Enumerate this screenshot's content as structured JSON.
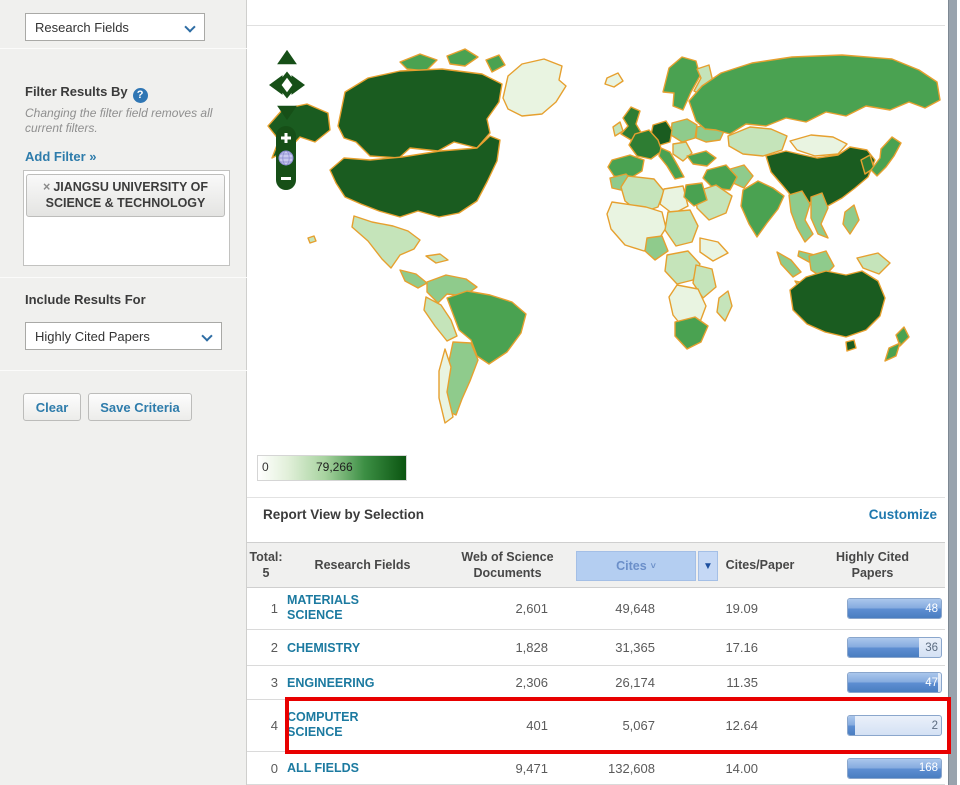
{
  "sidebar": {
    "field_selector_value": "Research Fields",
    "filter": {
      "title": "Filter Results By",
      "help": "?",
      "note": "Changing the filter field removes all current filters.",
      "add_filter": "Add Filter »",
      "chip_remove": "×",
      "chip_label": "JIANGSU UNIVERSITY OF SCIENCE & TECHNOLOGY"
    },
    "include": {
      "title": "Include Results For",
      "selector_value": "Highly Cited Papers"
    },
    "clear_label": "Clear",
    "save_label": "Save Criteria"
  },
  "map": {
    "legend_min": "0",
    "legend_max": "79,266",
    "zoom_in": "+",
    "zoom_out": "−",
    "color_scale": [
      "#e9f4e1",
      "#c5e4ba",
      "#8fcb8c",
      "#4aa251",
      "#2e7d33",
      "#1a5c20"
    ],
    "border_color": "#e6a02f"
  },
  "report": {
    "title": "Report View by Selection",
    "customize": "Customize",
    "columns": {
      "total": "Total:\n5",
      "field": "Research Fields",
      "docs": "Web of Science\nDocuments",
      "cites": "Cites",
      "cites_caret": "˅",
      "dropdown_caret": "▼",
      "cpp": "Cites/Paper",
      "hcp": "Highly Cited\nPapers"
    }
  },
  "table": {
    "rows": [
      {
        "rank": "1",
        "field": "MATERIALS SCIENCE",
        "docs": "2,601",
        "cites": "49,648",
        "cpp": "19.09",
        "hcp": "48",
        "hcp_fill": 100
      },
      {
        "rank": "2",
        "field": "CHEMISTRY",
        "docs": "1,828",
        "cites": "31,365",
        "cpp": "17.16",
        "hcp": "36",
        "hcp_fill": 76
      },
      {
        "rank": "3",
        "field": "ENGINEERING",
        "docs": "2,306",
        "cites": "26,174",
        "cpp": "11.35",
        "hcp": "47",
        "hcp_fill": 97
      },
      {
        "rank": "4",
        "field": "COMPUTER SCIENCE",
        "docs": "401",
        "cites": "5,067",
        "cpp": "12.64",
        "hcp": "2",
        "hcp_fill": 7,
        "highlighted": true
      },
      {
        "rank": "0",
        "field": "ALL FIELDS",
        "docs": "9,471",
        "cites": "132,608",
        "cpp": "14.00",
        "hcp": "168",
        "hcp_fill": 100
      }
    ]
  }
}
